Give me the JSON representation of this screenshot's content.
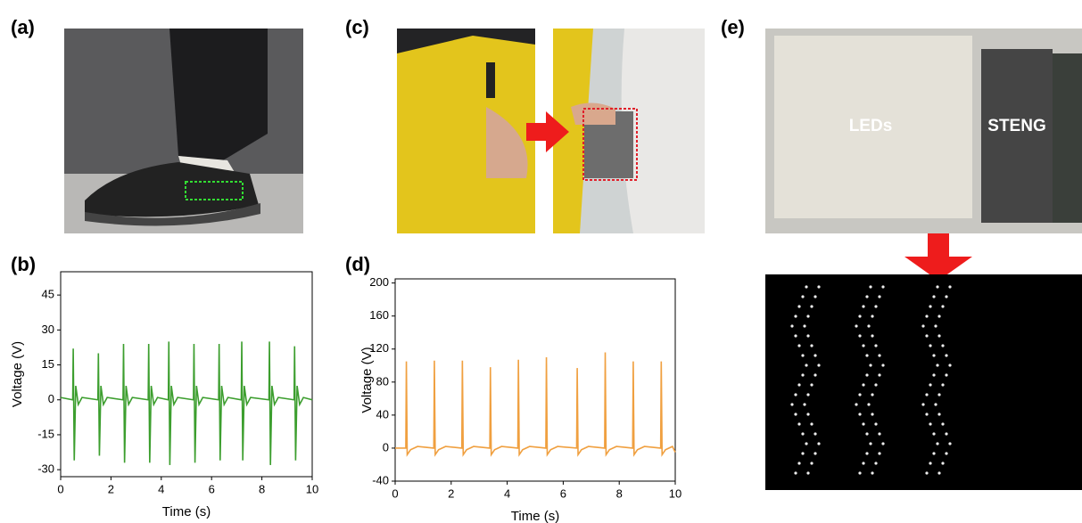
{
  "panels": {
    "a": {
      "label": "(a)"
    },
    "c": {
      "label": "(c)"
    },
    "e": {
      "label": "(e)",
      "texts": [
        "LEDs",
        "STENG"
      ]
    }
  },
  "chart_data": [
    {
      "type": "line",
      "panel_label": "(b)",
      "x_label": "Time (s)",
      "y_label": "Voltage (V)",
      "xlim": [
        0,
        10
      ],
      "xticks": [
        0,
        2,
        4,
        6,
        8,
        10
      ],
      "ylim": [
        -33,
        55
      ],
      "yticks": [
        -30,
        -15,
        0,
        15,
        30,
        45
      ],
      "x": [
        0,
        0.48,
        0.5,
        0.54,
        0.6,
        0.7,
        0.85,
        1.48,
        1.5,
        1.54,
        1.6,
        1.7,
        1.85,
        2.48,
        2.5,
        2.54,
        2.6,
        2.7,
        2.85,
        3.48,
        3.5,
        3.54,
        3.6,
        3.7,
        3.85,
        4.28,
        4.3,
        4.34,
        4.4,
        4.5,
        4.65,
        5.28,
        5.3,
        5.34,
        5.4,
        5.5,
        5.65,
        6.28,
        6.3,
        6.34,
        6.4,
        6.5,
        6.65,
        7.18,
        7.2,
        7.24,
        7.3,
        7.4,
        7.55,
        8.28,
        8.3,
        8.34,
        8.4,
        8.5,
        8.65,
        9.28,
        9.3,
        9.34,
        9.4,
        9.5,
        9.65,
        10
      ],
      "series": [
        {
          "color": "#3c9e2e",
          "values": [
            1,
            0,
            22,
            -26,
            6,
            -2,
            1,
            0,
            20,
            -24,
            6,
            -2,
            1,
            0,
            24,
            -27,
            6,
            -2,
            1,
            0,
            24,
            -27,
            6,
            -2,
            1,
            0,
            25,
            -28,
            6,
            -2,
            1,
            0,
            24,
            -27,
            6,
            -2,
            1,
            0,
            24,
            -26,
            6,
            -2,
            1,
            0,
            25,
            -26,
            6,
            -2,
            1,
            0,
            25,
            -28,
            6,
            -2,
            1,
            0,
            23,
            -26,
            6,
            -2,
            1,
            0
          ]
        }
      ]
    },
    {
      "type": "line",
      "panel_label": "(d)",
      "x_label": "Time (s)",
      "y_label": "Voltage (V)",
      "xlim": [
        0,
        10
      ],
      "xticks": [
        0,
        2,
        4,
        6,
        8,
        10
      ],
      "ylim": [
        -40,
        205
      ],
      "yticks": [
        -40,
        0,
        40,
        80,
        120,
        160,
        200
      ],
      "x": [
        0,
        0.38,
        0.4,
        0.43,
        0.55,
        0.8,
        1.38,
        1.4,
        1.43,
        1.55,
        1.8,
        2.38,
        2.4,
        2.43,
        2.55,
        2.8,
        3.38,
        3.4,
        3.43,
        3.55,
        3.8,
        4.38,
        4.4,
        4.43,
        4.55,
        4.8,
        5.38,
        5.4,
        5.43,
        5.55,
        5.8,
        6.48,
        6.5,
        6.53,
        6.65,
        6.9,
        7.48,
        7.5,
        7.53,
        7.65,
        7.9,
        8.48,
        8.5,
        8.53,
        8.65,
        8.9,
        9.48,
        9.5,
        9.53,
        9.65,
        9.9,
        10
      ],
      "series": [
        {
          "color": "#f0a040",
          "values": [
            0,
            0,
            105,
            -8,
            -2,
            2,
            0,
            106,
            -8,
            -2,
            2,
            0,
            106,
            -8,
            -2,
            2,
            0,
            98,
            -8,
            -2,
            2,
            0,
            107,
            -8,
            -2,
            2,
            0,
            110,
            -8,
            -2,
            2,
            0,
            97,
            -8,
            -2,
            2,
            0,
            116,
            -8,
            -2,
            2,
            0,
            105,
            -8,
            -2,
            2,
            0,
            105,
            -8,
            -2,
            2,
            -5
          ]
        }
      ]
    }
  ]
}
